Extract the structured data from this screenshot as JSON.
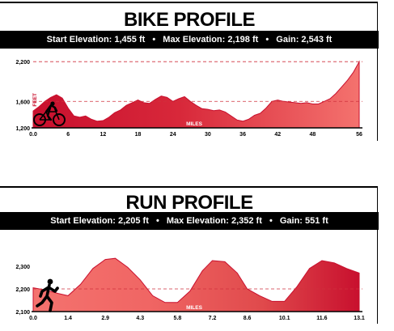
{
  "bike": {
    "title": "BIKE PROFILE",
    "stats": {
      "start": "Start Elevation: 1,455 ft",
      "max": "Max Elevation: 2,198 ft",
      "gain": "Gain: 2,543 ft",
      "sep": "•"
    }
  },
  "run": {
    "title": "RUN PROFILE",
    "stats": {
      "start": "Start Elevation: 2,205 ft",
      "max": "Max Elevation: 2,352 ft",
      "gain": "Gain: 551 ft",
      "sep": "•"
    }
  },
  "colors": {
    "profile_dark": "#c8102e",
    "profile_light": "#f4726e",
    "ref_line": "#d0303c"
  },
  "icons": {
    "bike": "cyclist-silhouette-icon",
    "run": "runner-silhouette-icon"
  },
  "chart_data": [
    {
      "type": "area",
      "title": "BIKE PROFILE",
      "xlabel": "MILES",
      "ylabel": "FEET",
      "xlim": [
        0,
        56
      ],
      "ylim": [
        1200,
        2300
      ],
      "xticks": [
        0,
        6,
        12,
        18,
        24,
        30,
        36,
        42,
        48,
        56
      ],
      "xtick_labels": [
        "0.0",
        "6",
        "12",
        "18",
        "24",
        "30",
        "36",
        "42",
        "48",
        "56"
      ],
      "yticks": [
        1200,
        1600,
        2200
      ],
      "ytick_labels": [
        "1,200",
        "1,600",
        "2,200"
      ],
      "ref_lines": [
        1600,
        2200
      ],
      "x": [
        0,
        1,
        2,
        3,
        4,
        5,
        6,
        7,
        8,
        9,
        10,
        11,
        12,
        13,
        14,
        15,
        16,
        17,
        18,
        19,
        20,
        21,
        22,
        23,
        24,
        25,
        26,
        27,
        28,
        29,
        30,
        31,
        32,
        33,
        34,
        35,
        36,
        37,
        38,
        39,
        40,
        41,
        42,
        43,
        44,
        45,
        46,
        47,
        48,
        49,
        50,
        51,
        52,
        53,
        54,
        55,
        56
      ],
      "y": [
        1455,
        1520,
        1600,
        1660,
        1700,
        1650,
        1500,
        1380,
        1360,
        1380,
        1330,
        1300,
        1310,
        1360,
        1430,
        1470,
        1540,
        1580,
        1620,
        1580,
        1570,
        1630,
        1680,
        1660,
        1600,
        1640,
        1670,
        1600,
        1540,
        1490,
        1480,
        1460,
        1470,
        1440,
        1380,
        1320,
        1300,
        1330,
        1390,
        1420,
        1500,
        1600,
        1620,
        1600,
        1590,
        1580,
        1570,
        1580,
        1560,
        1560,
        1600,
        1640,
        1720,
        1820,
        1920,
        2040,
        2198
      ]
    },
    {
      "type": "area",
      "title": "RUN PROFILE",
      "xlabel": "MILES",
      "xlim": [
        0,
        13.1
      ],
      "ylim": [
        2100,
        2350
      ],
      "xticks": [
        0,
        1.4,
        2.9,
        4.3,
        5.8,
        7.2,
        8.6,
        10.1,
        11.6,
        13.1
      ],
      "xtick_labels": [
        "0.0",
        "1.4",
        "2.9",
        "4.3",
        "5.8",
        "7.2",
        "8.6",
        "10.1",
        "11.6",
        "13.1"
      ],
      "yticks": [
        2100,
        2200,
        2300
      ],
      "ytick_labels": [
        "2,100",
        "2,200",
        "2,300"
      ],
      "ref_lines": [
        2200
      ],
      "x": [
        0,
        0.5,
        1,
        1.4,
        1.9,
        2.4,
        2.9,
        3.3,
        3.8,
        4.3,
        4.8,
        5.3,
        5.8,
        6.3,
        6.8,
        7.2,
        7.7,
        8.2,
        8.6,
        9.1,
        9.6,
        10.1,
        10.6,
        11.1,
        11.6,
        12.1,
        12.6,
        13.1
      ],
      "y": [
        2205,
        2195,
        2180,
        2170,
        2220,
        2290,
        2330,
        2335,
        2295,
        2240,
        2170,
        2140,
        2140,
        2190,
        2280,
        2325,
        2320,
        2270,
        2200,
        2170,
        2145,
        2145,
        2210,
        2290,
        2325,
        2315,
        2290,
        2270
      ]
    }
  ]
}
